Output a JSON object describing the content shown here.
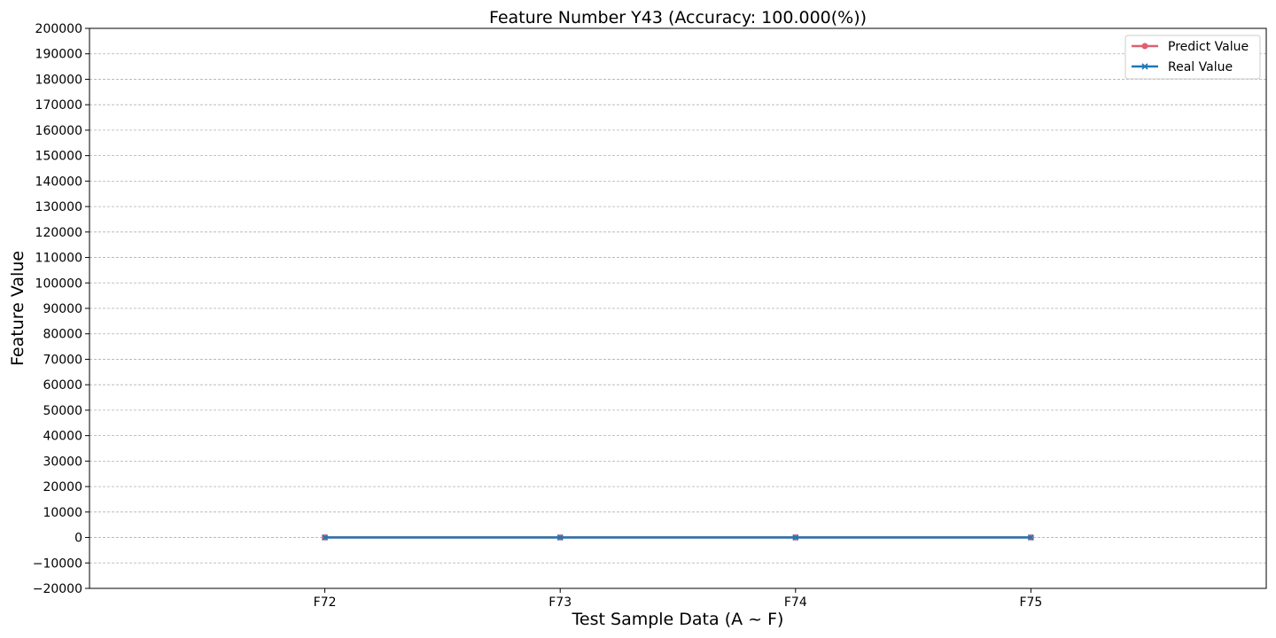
{
  "chart_data": {
    "type": "line",
    "title": "Feature Number Y43 (Accuracy: 100.000(%))",
    "xlabel": "Test Sample Data (A ~ F)",
    "ylabel": "Feature Value",
    "categories": [
      "F72",
      "F73",
      "F74",
      "F75"
    ],
    "ylim": [
      -20000,
      200000
    ],
    "yticks": [
      -20000,
      -10000,
      0,
      10000,
      20000,
      30000,
      40000,
      50000,
      60000,
      70000,
      80000,
      90000,
      100000,
      110000,
      120000,
      130000,
      140000,
      150000,
      160000,
      170000,
      180000,
      190000,
      200000
    ],
    "grid": "horizontal dashed",
    "legend_position": "top-right",
    "series": [
      {
        "name": "Predict Value",
        "color": "#e06070",
        "marker": "circle",
        "values": [
          0,
          0,
          0,
          0
        ]
      },
      {
        "name": "Real Value",
        "color": "#1f77b4",
        "marker": "x",
        "values": [
          0,
          0,
          0,
          0
        ]
      }
    ]
  }
}
